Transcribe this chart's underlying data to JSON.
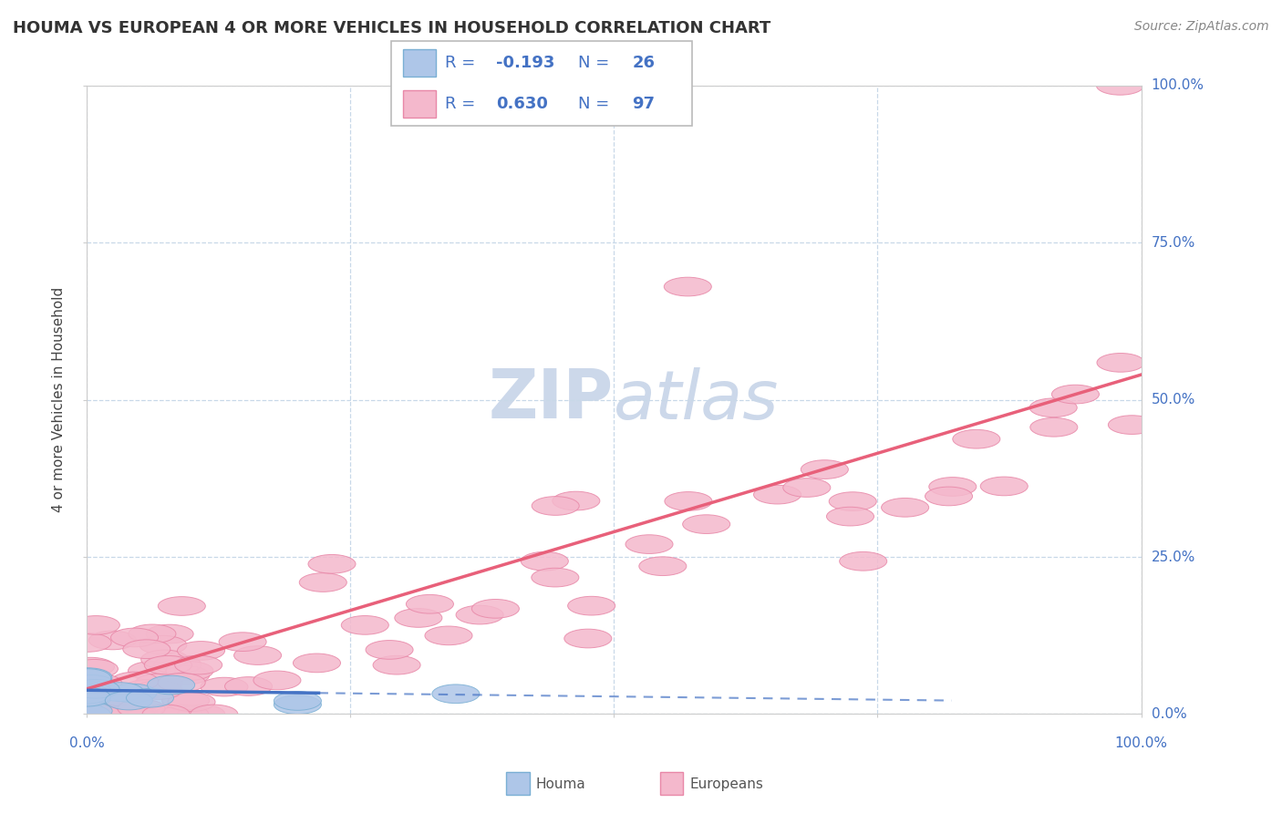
{
  "title": "HOUMA VS EUROPEAN 4 OR MORE VEHICLES IN HOUSEHOLD CORRELATION CHART",
  "source": "Source: ZipAtlas.com",
  "ylabel_label": "4 or more Vehicles in Household",
  "legend_label1": "Houma",
  "legend_label2": "Europeans",
  "R1": -0.193,
  "N1": 26,
  "R2": 0.63,
  "N2": 97,
  "houma_color": "#aec6e8",
  "houma_edge": "#7aafd4",
  "european_color": "#f4b8cc",
  "european_edge": "#e888a8",
  "line1_color": "#4472c4",
  "line2_color": "#e8607a",
  "background_color": "#ffffff",
  "grid_color": "#c8d8e8",
  "watermark_color": "#ccd8ea",
  "tick_color": "#4472c4",
  "title_color": "#333333",
  "source_color": "#888888",
  "ytick_labels": [
    "0.0%",
    "25.0%",
    "50.0%",
    "75.0%",
    "100.0%"
  ],
  "xtick_left": "0.0%",
  "xtick_right": "100.0%",
  "xlim": [
    0,
    100
  ],
  "ylim": [
    0,
    100
  ],
  "watermark_text": "ZIPatlas",
  "watermark_zip": "ZIP",
  "watermark_atlas": "atlas"
}
